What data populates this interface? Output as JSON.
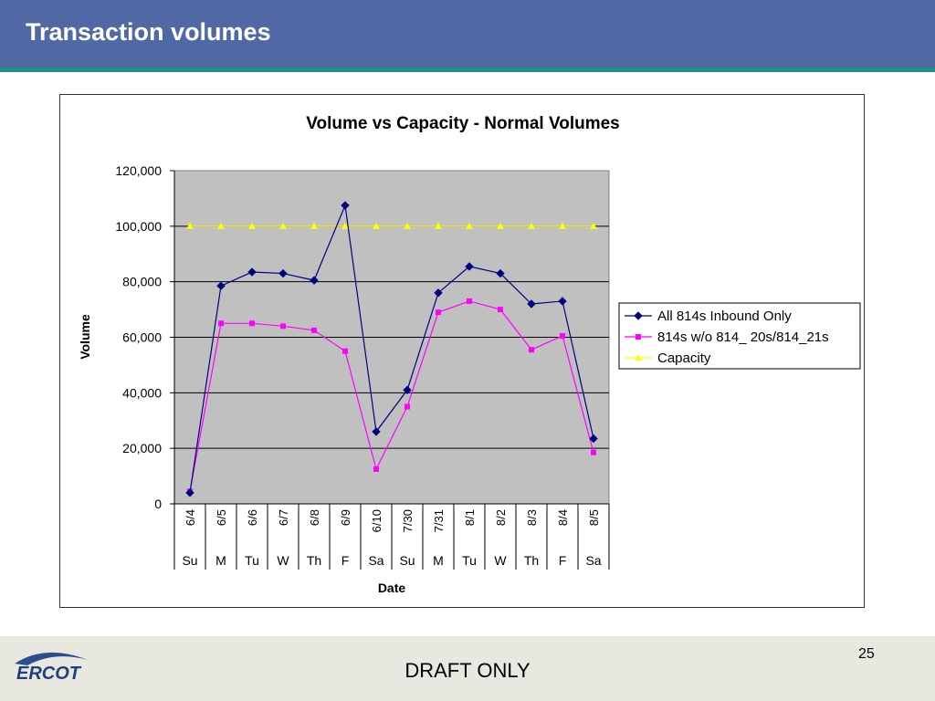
{
  "slide": {
    "title": "Transaction volumes",
    "footer_text": "DRAFT ONLY",
    "page_number": "25",
    "logo_text": "ERCOT"
  },
  "colors": {
    "header_bg": "#5068a3",
    "header_rule": "#1f8f8a",
    "plot_bg": "#c0c0c0",
    "footer_bg": "#e8e8e0"
  },
  "chart_data": {
    "type": "line",
    "title": "Volume vs Capacity - Normal Volumes",
    "xlabel": "Date",
    "ylabel": "Volume",
    "ylim": [
      0,
      120000
    ],
    "y_ticks": [
      "0",
      "20,000",
      "40,000",
      "60,000",
      "80,000",
      "100,000",
      "120,000"
    ],
    "categories": [
      "6/4",
      "6/5",
      "6/6",
      "6/7",
      "6/8",
      "6/9",
      "6/10",
      "7/30",
      "7/31",
      "8/1",
      "8/2",
      "8/3",
      "8/4",
      "8/5"
    ],
    "days": [
      "Su",
      "M",
      "Tu",
      "W",
      "Th",
      "F",
      "Sa",
      "Su",
      "M",
      "Tu",
      "W",
      "Th",
      "F",
      "Sa"
    ],
    "grid": true,
    "legend_position": "right",
    "series": [
      {
        "name": "All 814s Inbound Only",
        "color": "#000080",
        "marker": "diamond",
        "values": [
          4000,
          78500,
          83500,
          83000,
          80500,
          107500,
          26000,
          41000,
          76000,
          85500,
          83000,
          72000,
          73000,
          23500
        ]
      },
      {
        "name": "814s w/o 814_ 20s/814_21s",
        "color": "#ff00ff",
        "marker": "square",
        "values": [
          4500,
          65000,
          65000,
          64000,
          62500,
          55000,
          12500,
          35000,
          69000,
          73000,
          70000,
          55500,
          60500,
          18500
        ]
      },
      {
        "name": "Capacity",
        "color": "#ffff00",
        "marker": "triangle",
        "values": [
          100000,
          100000,
          100000,
          100000,
          100000,
          100000,
          100000,
          100000,
          100000,
          100000,
          100000,
          100000,
          100000,
          100000
        ]
      }
    ]
  }
}
